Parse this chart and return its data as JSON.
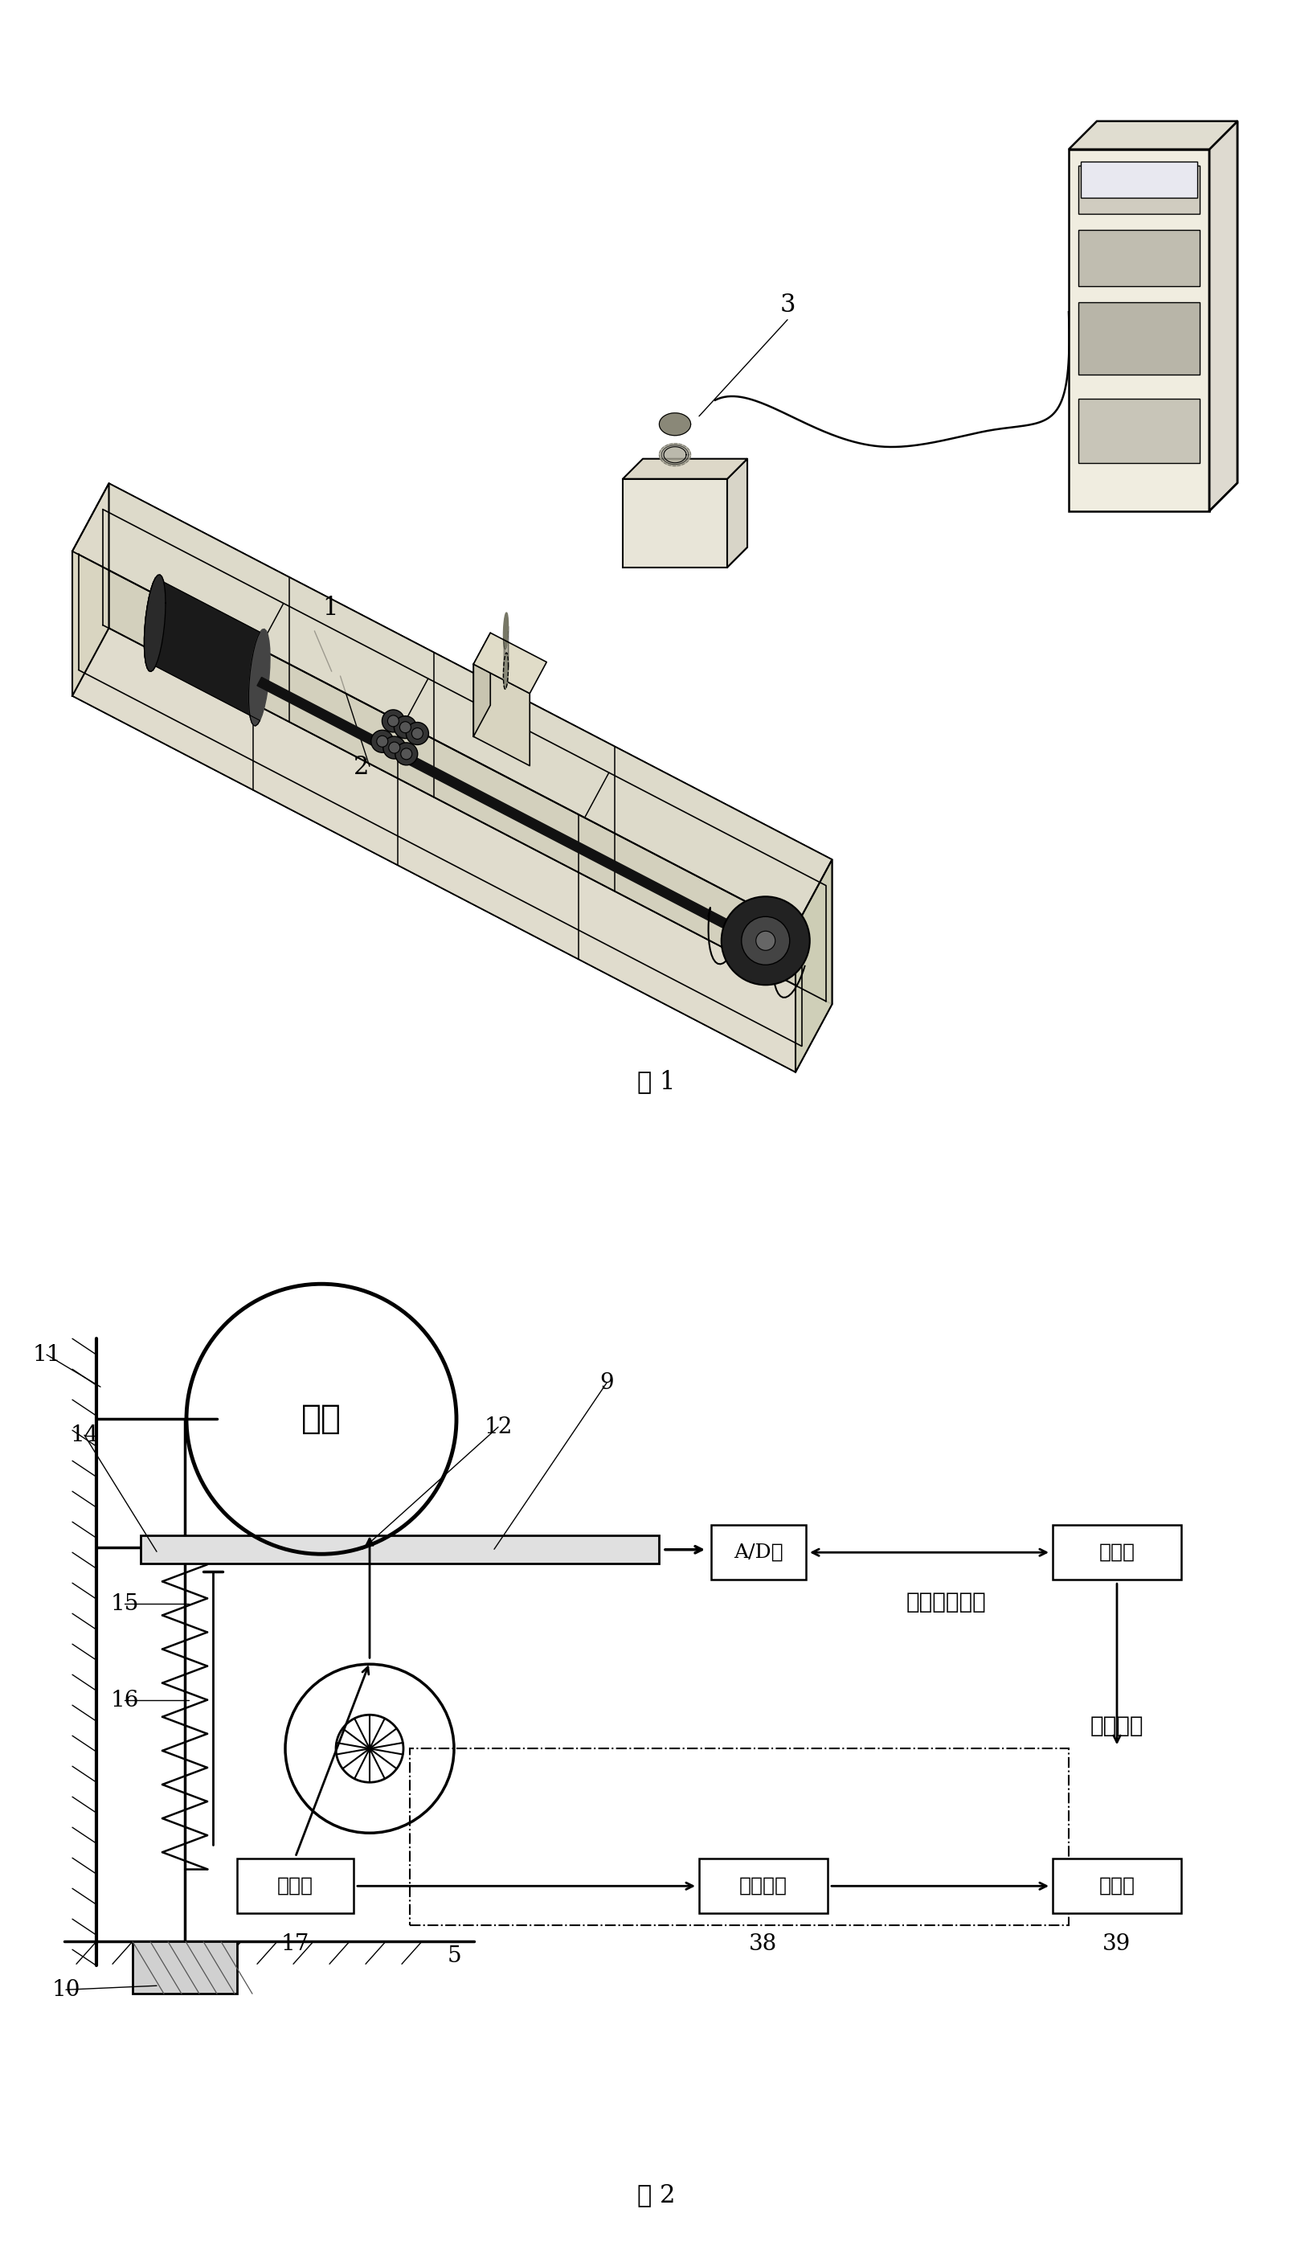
{
  "fig1_label": "图 1",
  "fig2_label": "图 2",
  "bg_color": "#ffffff",
  "line_color": "#000000",
  "label1": "1",
  "label2": "2",
  "label3": "3",
  "label9": "9",
  "label10": "10",
  "label11": "11",
  "label12": "12",
  "label14": "14",
  "label15": "15",
  "label16": "16",
  "label17": "17",
  "label5": "5",
  "label38": "38",
  "label39": "39",
  "wheel_text": "车轮",
  "ad_text": "A/D卡",
  "computer_text": "计算机",
  "data_system_text": "数据采集系统",
  "control_system_text": "控制系统",
  "coupler_text": "联轴器",
  "ac_motor_text": "交流电机",
  "freq_converter_text": "变频器"
}
